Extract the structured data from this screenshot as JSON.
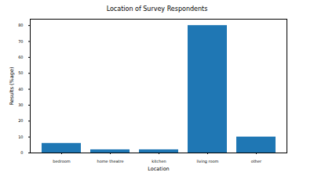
{
  "chart_data": {
    "type": "bar",
    "title": "Location of Survey Respondents",
    "x_label": "Location",
    "y_label": "Results (%age)",
    "categories": [
      "bedroom",
      "home theatre",
      "kitchen",
      "living room",
      "other"
    ],
    "values": [
      6,
      2,
      2,
      80,
      10
    ],
    "color": "#1f77b4",
    "ylim": [
      0,
      84
    ],
    "yticks": [
      0,
      10,
      20,
      30,
      40,
      50,
      60,
      70,
      80
    ],
    "grid": false
  }
}
